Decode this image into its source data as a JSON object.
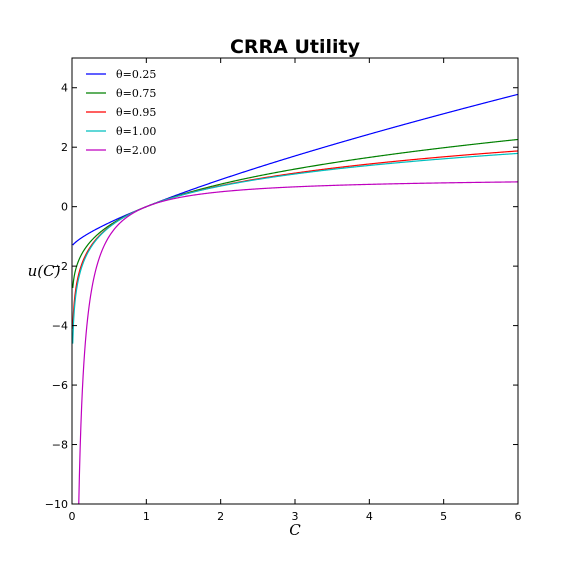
{
  "chart_data": {
    "type": "line",
    "title": "CRRA Utility",
    "xlabel": "C",
    "ylabel": "u(C)",
    "xlim": [
      0,
      6
    ],
    "ylim": [
      -10,
      5
    ],
    "xticks": [
      0,
      1,
      2,
      3,
      4,
      5,
      6
    ],
    "yticks": [
      -10,
      -8,
      -6,
      -4,
      -2,
      0,
      2,
      4
    ],
    "grid": false,
    "legend_position": "top-left",
    "function": "u(C) = (C^(1-theta) - 1) / (1 - theta); theta = 1 uses ln(C)",
    "x_range": [
      0.01,
      6
    ],
    "series": [
      {
        "name": "θ=0.25",
        "theta": 0.25,
        "color": "#0000ff",
        "x": [
          0.01,
          0.1,
          0.25,
          0.5,
          0.75,
          1,
          1.5,
          2,
          3,
          4,
          5,
          6
        ],
        "y": [
          -1.29,
          -1.04,
          -0.83,
          -0.54,
          -0.26,
          0.0,
          0.48,
          0.91,
          1.71,
          2.44,
          3.13,
          3.79
        ]
      },
      {
        "name": "θ=0.75",
        "theta": 0.75,
        "color": "#008000",
        "x": [
          0.01,
          0.1,
          0.25,
          0.5,
          0.75,
          1,
          1.5,
          2,
          3,
          4,
          5,
          6
        ],
        "y": [
          -2.73,
          -1.75,
          -1.17,
          -0.64,
          -0.28,
          0.0,
          0.43,
          0.76,
          1.26,
          1.66,
          1.99,
          2.26
        ]
      },
      {
        "name": "θ=0.95",
        "theta": 0.95,
        "color": "#ff0000",
        "x": [
          0.01,
          0.1,
          0.25,
          0.5,
          0.75,
          1,
          1.5,
          2,
          3,
          4,
          5,
          6
        ],
        "y": [
          -4.34,
          -2.18,
          -1.33,
          -0.68,
          -0.29,
          0.0,
          0.41,
          0.7,
          1.12,
          1.42,
          1.65,
          1.83
        ]
      },
      {
        "name": "θ=1.00",
        "theta": 1.0,
        "color": "#00bfbf",
        "x": [
          0.01,
          0.1,
          0.25,
          0.5,
          0.75,
          1,
          1.5,
          2,
          3,
          4,
          5,
          6
        ],
        "y": [
          -4.61,
          -2.3,
          -1.39,
          -0.69,
          -0.29,
          0.0,
          0.41,
          0.69,
          1.1,
          1.39,
          1.61,
          1.79
        ]
      },
      {
        "name": "θ=2.00",
        "theta": 2.0,
        "color": "#bf00bf",
        "x": [
          0.1,
          0.25,
          0.5,
          0.75,
          1,
          1.5,
          2,
          3,
          4,
          5,
          6
        ],
        "y": [
          -9.0,
          -3.0,
          -1.0,
          -0.33,
          0.0,
          0.33,
          0.5,
          0.67,
          0.75,
          0.8,
          0.83
        ]
      }
    ]
  }
}
